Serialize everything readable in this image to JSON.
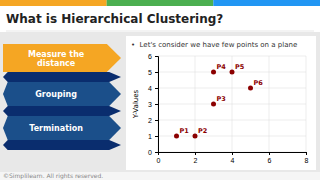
{
  "chart_data": {
    "type": "scatter",
    "title": "What is Hierarchical Clustering?",
    "annotations": [
      "•  Let's consider we have few points on a plane",
      "Measure the\ndistance",
      "Grouping",
      "Termination",
      "©Simplilearn. All rights reserved."
    ],
    "x": [
      1,
      2,
      3,
      3,
      4,
      5
    ],
    "values": [
      1,
      1,
      3,
      5,
      5,
      4
    ],
    "labels": [
      "P1",
      "P2",
      "P3",
      "P4",
      "P5",
      "P6"
    ],
    "color": "#8B0000",
    "xlim": [
      0,
      8
    ],
    "ylim": [
      0,
      6
    ],
    "xticks": [
      0,
      2,
      4,
      6,
      8
    ],
    "yticks": [
      0,
      1,
      2,
      3,
      4,
      5,
      6
    ],
    "ylabel": "Y-Values",
    "grid": true
  }
}
